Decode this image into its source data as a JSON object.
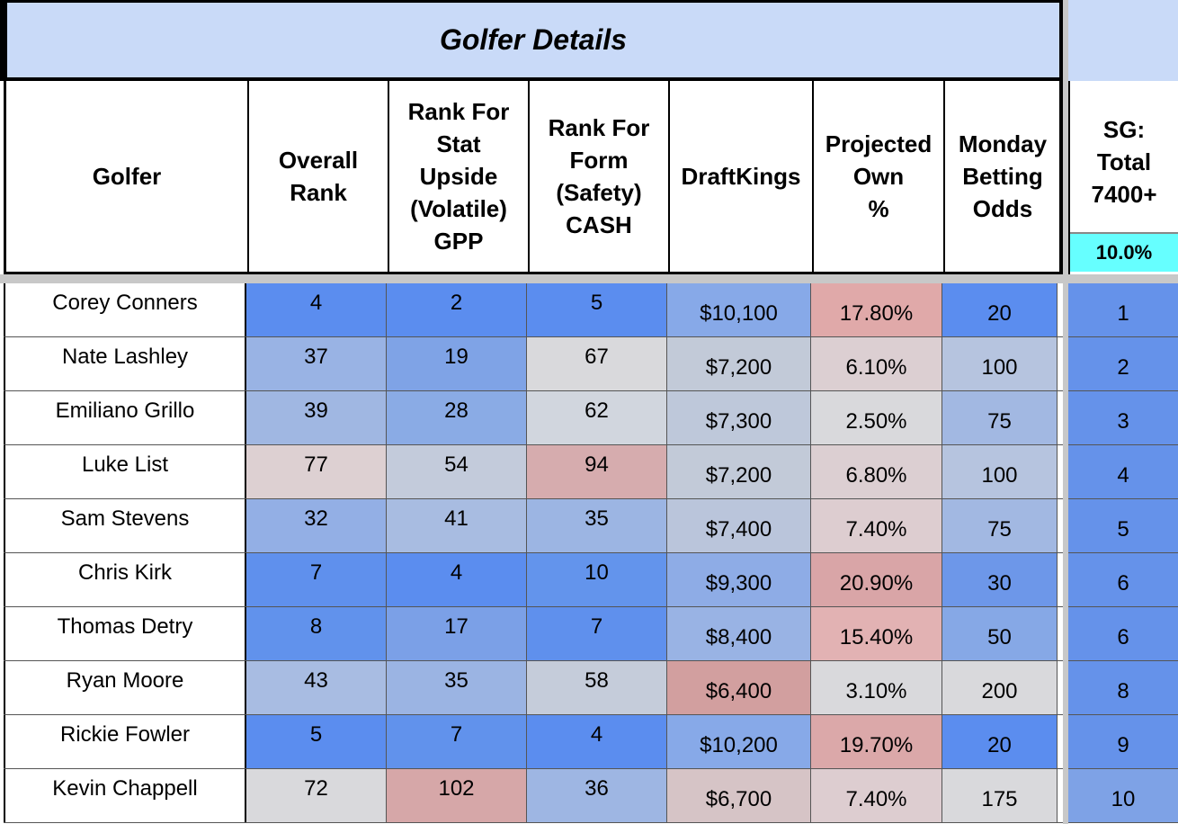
{
  "title": "Golfer Details",
  "headers": [
    "Golfer",
    "Overall\nRank",
    "Rank For\nStat\nUpside\n(Volatile)\nGPP",
    "Rank For\nForm\n(Safety)\nCASH",
    "DraftKings",
    "Projected\nOwn\n%",
    "Monday\nBetting\nOdds"
  ],
  "right_header": "SG:\nTotal\n7400+",
  "right_weight": "10.0%",
  "rows": [
    {
      "golfer": "Corey Conners",
      "overall": "4",
      "stat": "2",
      "form": "5",
      "dk": "$10,100",
      "own": "17.80%",
      "odds": "20",
      "sg": "1",
      "colors": [
        "#5b8def",
        "#5b8def",
        "#5b8def",
        "#87a9e8",
        "#e0a9a9",
        "#5b8def",
        "#6592ea"
      ]
    },
    {
      "golfer": "Nate Lashley",
      "overall": "37",
      "stat": "19",
      "form": "67",
      "dk": "$7,200",
      "own": "6.10%",
      "odds": "100",
      "sg": "2",
      "colors": [
        "#99b3e4",
        "#7fa3e6",
        "#d9d9dc",
        "#c2cad8",
        "#dccfd2",
        "#b6c4df",
        "#6592ea"
      ]
    },
    {
      "golfer": "Emiliano Grillo",
      "overall": "39",
      "stat": "28",
      "form": "62",
      "dk": "$7,300",
      "own": "2.50%",
      "odds": "75",
      "sg": "3",
      "colors": [
        "#a0b7e2",
        "#8aabe5",
        "#d1d6de",
        "#bec8da",
        "#d9d9dc",
        "#a2b8e2",
        "#6592ea"
      ]
    },
    {
      "golfer": "Luke List",
      "overall": "77",
      "stat": "54",
      "form": "94",
      "dk": "$7,200",
      "own": "6.80%",
      "odds": "100",
      "sg": "4",
      "colors": [
        "#ddd0d2",
        "#c3cbdb",
        "#d6acae",
        "#c2cad8",
        "#dccfd2",
        "#b6c4df",
        "#6592ea"
      ]
    },
    {
      "golfer": "Sam Stevens",
      "overall": "32",
      "stat": "41",
      "form": "35",
      "dk": "$7,400",
      "own": "7.40%",
      "odds": "75",
      "sg": "5",
      "colors": [
        "#93afe5",
        "#a8bce1",
        "#9cb5e3",
        "#bac5db",
        "#ddcdd0",
        "#a2b8e2",
        "#6592ea"
      ]
    },
    {
      "golfer": "Chris Kirk",
      "overall": "7",
      "stat": "4",
      "form": "10",
      "dk": "$9,300",
      "own": "20.90%",
      "odds": "30",
      "sg": "6",
      "colors": [
        "#5f90ed",
        "#5b8def",
        "#6394ec",
        "#8eace6",
        "#d9a5a7",
        "#6d97e9",
        "#6592ea"
      ]
    },
    {
      "golfer": "Thomas Detry",
      "overall": "8",
      "stat": "17",
      "form": "7",
      "dk": "$8,400",
      "own": "15.40%",
      "odds": "50",
      "sg": "6",
      "colors": [
        "#6192ec",
        "#7ba0e7",
        "#5f90ed",
        "#99b3e4",
        "#e2b2b3",
        "#86a8e6",
        "#6592ea"
      ]
    },
    {
      "golfer": "Ryan Moore",
      "overall": "43",
      "stat": "35",
      "form": "58",
      "dk": "$6,400",
      "own": "3.10%",
      "odds": "200",
      "sg": "8",
      "colors": [
        "#a8bce2",
        "#9bb4e3",
        "#c5ccda",
        "#d29f9f",
        "#d9d9dc",
        "#d9d9dc",
        "#6592ea"
      ]
    },
    {
      "golfer": "Rickie Fowler",
      "overall": "5",
      "stat": "7",
      "form": "4",
      "dk": "$10,200",
      "own": "19.70%",
      "odds": "20",
      "sg": "9",
      "colors": [
        "#5b8def",
        "#6192ec",
        "#5b8def",
        "#87a9e8",
        "#dba8a9",
        "#5b8def",
        "#6592ea"
      ]
    },
    {
      "golfer": "Kevin Chappell",
      "overall": "72",
      "stat": "102",
      "form": "36",
      "dk": "$6,700",
      "own": "7.40%",
      "odds": "175",
      "sg": "10",
      "colors": [
        "#d9d9dc",
        "#d6a7a8",
        "#9eb6e3",
        "#d6c4c6",
        "#ddcdd0",
        "#d9d9dc",
        "#7ea2e6"
      ]
    }
  ]
}
